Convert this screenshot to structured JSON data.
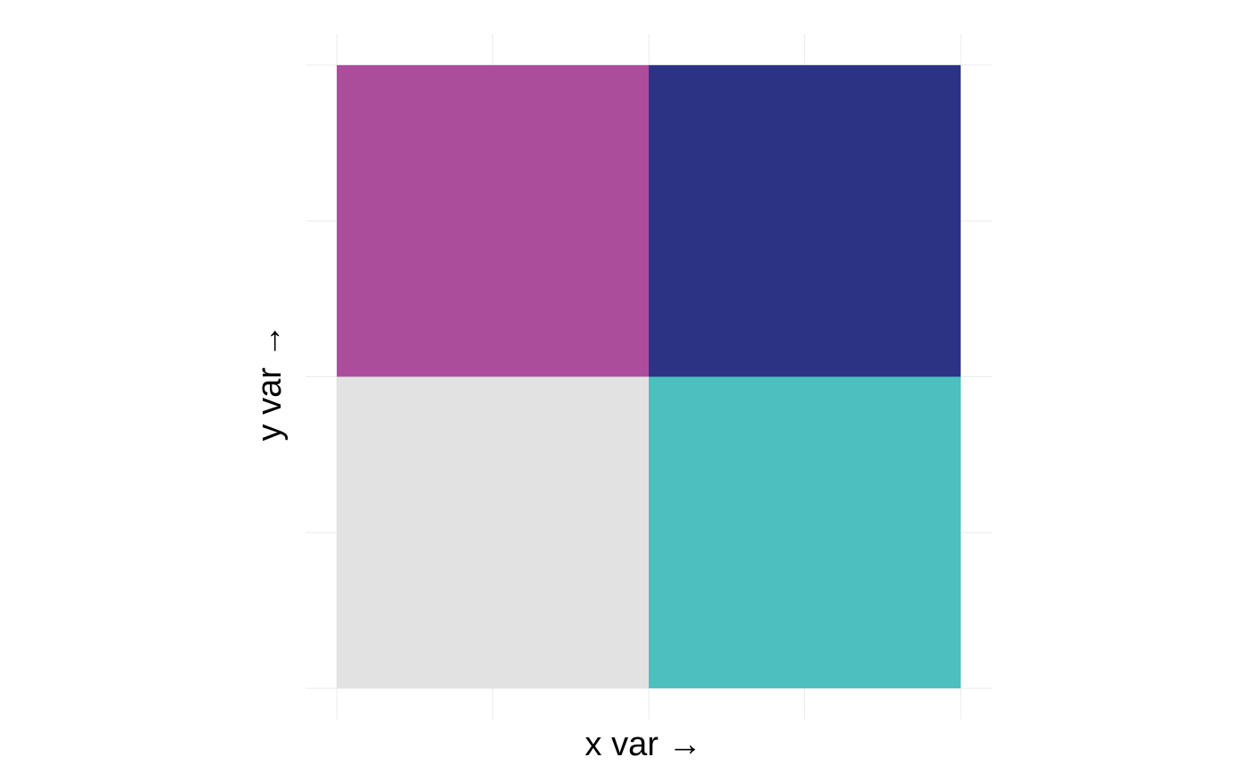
{
  "chart_data": {
    "type": "heatmap",
    "title": "",
    "xlabel": "x var →",
    "ylabel": "y var →",
    "xlim": [
      0.5,
      2.5
    ],
    "ylim": [
      0.5,
      2.5
    ],
    "grid": true,
    "legend": "none",
    "cells": [
      {
        "x": 1,
        "y": 1,
        "fill": "#e2e2e2"
      },
      {
        "x": 2,
        "y": 1,
        "fill": "#4cbfbe"
      },
      {
        "x": 1,
        "y": 2,
        "fill": "#ac4d9c"
      },
      {
        "x": 2,
        "y": 2,
        "fill": "#2c3385"
      }
    ]
  },
  "colors": {
    "background": "#ffffff",
    "grid": "#ebebeb",
    "text": "#000000"
  }
}
